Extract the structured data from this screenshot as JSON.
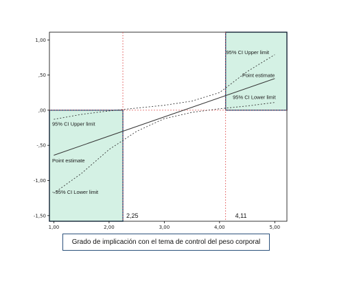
{
  "chart_data": {
    "type": "line",
    "title": "",
    "xlabel": "Grado de implicación con el tema de control del peso corporal",
    "ylabel": "",
    "xlim": [
      0.92,
      5.22
    ],
    "ylim": [
      -1.58,
      1.11
    ],
    "x_ticks": [
      1.0,
      2.0,
      3.0,
      4.0,
      5.0
    ],
    "x_tick_labels": [
      "1,00",
      "2,00",
      "3,00",
      "4,00",
      "5,00"
    ],
    "y_ticks": [
      -1.5,
      -1.0,
      -0.5,
      0.0,
      0.5,
      1.0
    ],
    "y_tick_labels": [
      "-1,50",
      "-1,00",
      "-,50",
      ",00",
      ",50",
      "1,00"
    ],
    "grid": false,
    "series": [
      {
        "name": "Point estimate",
        "style": "solid",
        "x": [
          1.0,
          5.0
        ],
        "y": [
          -0.64,
          0.45
        ]
      },
      {
        "name": "95% CI Upper limit",
        "style": "dotted",
        "x": [
          1.0,
          1.5,
          2.0,
          2.5,
          3.0,
          3.5,
          4.0,
          4.5,
          5.0
        ],
        "y": [
          -0.13,
          -0.06,
          -0.01,
          0.03,
          0.07,
          0.13,
          0.25,
          0.55,
          0.79
        ]
      },
      {
        "name": "95% CI Lower limit",
        "style": "dotted",
        "x": [
          1.0,
          1.5,
          2.0,
          2.5,
          3.0,
          3.5,
          4.0,
          4.5,
          5.0
        ],
        "y": [
          -1.18,
          -0.9,
          -0.56,
          -0.3,
          -0.12,
          -0.03,
          0.02,
          0.06,
          0.11
        ]
      }
    ],
    "johnson_neyman": [
      {
        "x": 2.25,
        "label": "2,25"
      },
      {
        "x": 4.11,
        "label": "4,11"
      }
    ],
    "regions": [
      {
        "x0": 0.92,
        "x1": 2.25,
        "y0": -1.58,
        "y1": 0.0,
        "color": "#d4f1e4"
      },
      {
        "x0": 4.11,
        "x1": 5.22,
        "y0": 0.0,
        "y1": 1.11,
        "color": "#d4f1e4"
      }
    ],
    "annotations": [
      {
        "text": "95% CI Upper limit",
        "x": 4.12,
        "y": 0.8
      },
      {
        "text": "Point estimate",
        "x": 4.41,
        "y": 0.47
      },
      {
        "text": "95% CI Lower limit",
        "x": 4.24,
        "y": 0.16
      },
      {
        "text": "95% CI Upper limit",
        "x": 0.97,
        "y": -0.22
      },
      {
        "text": "Point estimate",
        "x": 0.97,
        "y": -0.74
      },
      {
        "text": "- 95% CI Lower limit",
        "x": 0.97,
        "y": -1.19
      }
    ],
    "colors": {
      "line": "#333333",
      "jn_line": "#e05555",
      "region_fill": "#d4f1e4",
      "region_border": "#2a4f7a"
    }
  }
}
